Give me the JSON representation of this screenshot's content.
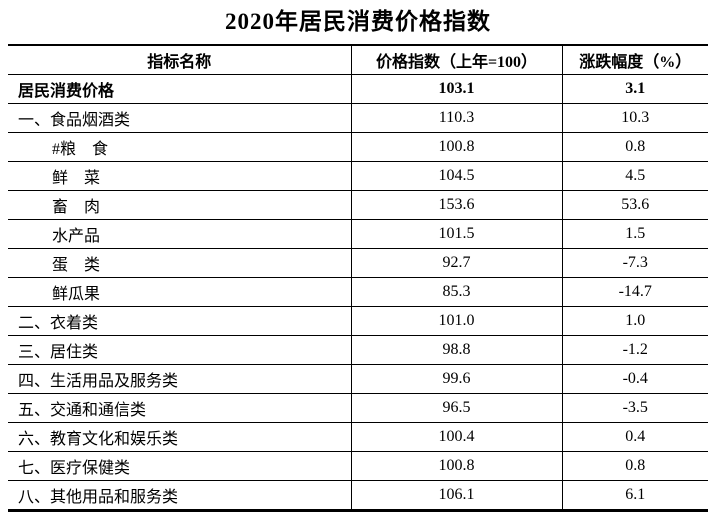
{
  "page": {
    "title": "2020年居民消费价格指数"
  },
  "table": {
    "headers": [
      "指标名称",
      "价格指数（上年=100）",
      "涨跌幅度（%）"
    ],
    "rows": [
      {
        "label": "居民消费价格",
        "index": "103.1",
        "change": "3.1",
        "bold": true,
        "indent": 0
      },
      {
        "label": "一、食品烟酒类",
        "index": "110.3",
        "change": "10.3",
        "bold": false,
        "indent": 0
      },
      {
        "label": "#粮　食",
        "index": "100.8",
        "change": "0.8",
        "bold": false,
        "indent": 1
      },
      {
        "label": "鲜　菜",
        "index": "104.5",
        "change": "4.5",
        "bold": false,
        "indent": 1
      },
      {
        "label": "畜　肉",
        "index": "153.6",
        "change": "53.6",
        "bold": false,
        "indent": 1
      },
      {
        "label": "水产品",
        "index": "101.5",
        "change": "1.5",
        "bold": false,
        "indent": 1
      },
      {
        "label": "蛋　类",
        "index": "92.7",
        "change": "-7.3",
        "bold": false,
        "indent": 1
      },
      {
        "label": "鲜瓜果",
        "index": "85.3",
        "change": "-14.7",
        "bold": false,
        "indent": 1
      },
      {
        "label": "二、衣着类",
        "index": "101.0",
        "change": "1.0",
        "bold": false,
        "indent": 0
      },
      {
        "label": "三、居住类",
        "index": "98.8",
        "change": "-1.2",
        "bold": false,
        "indent": 0
      },
      {
        "label": "四、生活用品及服务类",
        "index": "99.6",
        "change": "-0.4",
        "bold": false,
        "indent": 0
      },
      {
        "label": "五、交通和通信类",
        "index": "96.5",
        "change": "-3.5",
        "bold": false,
        "indent": 0
      },
      {
        "label": "六、教育文化和娱乐类",
        "index": "100.4",
        "change": "0.4",
        "bold": false,
        "indent": 0
      },
      {
        "label": "七、医疗保健类",
        "index": "100.8",
        "change": "0.8",
        "bold": false,
        "indent": 0
      },
      {
        "label": "八、其他用品和服务类",
        "index": "106.1",
        "change": "6.1",
        "bold": false,
        "indent": 0
      }
    ]
  }
}
